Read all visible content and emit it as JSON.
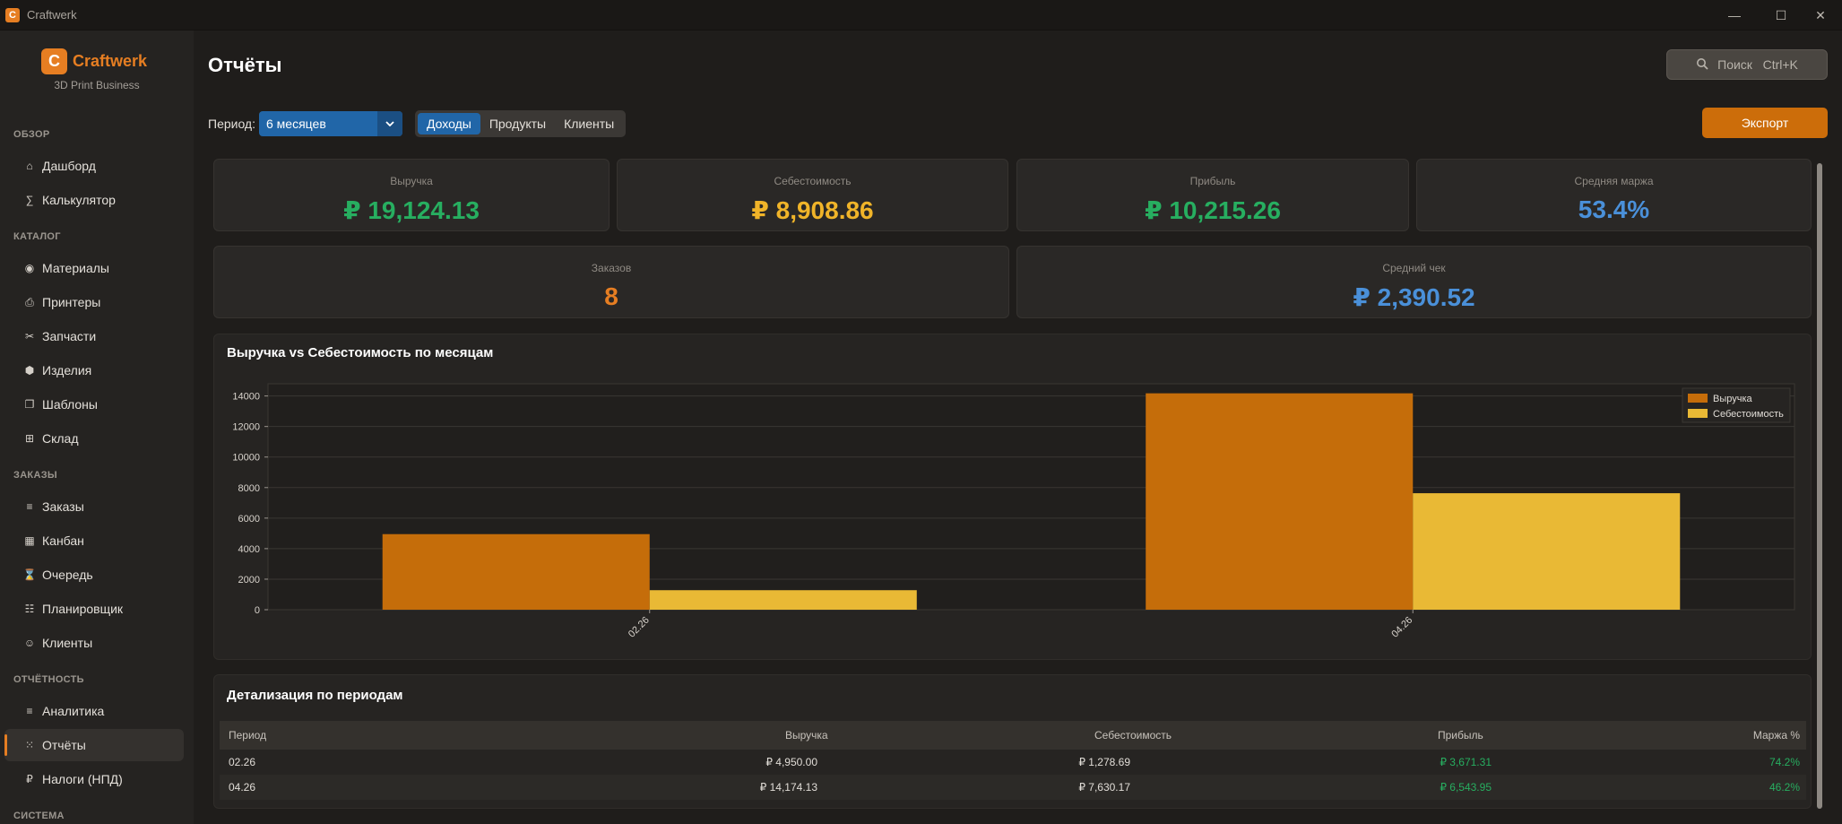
{
  "window": {
    "title": "Craftwerk",
    "logo_letter": "C",
    "controls": [
      "—",
      "☐",
      "✕"
    ]
  },
  "brand": {
    "name": "Craftwerk",
    "subtitle": "3D Print Business",
    "icon": "C"
  },
  "sidebar": {
    "sections": [
      {
        "label": "ОБЗОР",
        "items": [
          {
            "icon": "home-icon",
            "glyph": "⌂",
            "label": "Дашборд"
          },
          {
            "icon": "sigma-icon",
            "glyph": "∑",
            "label": "Калькулятор"
          }
        ]
      },
      {
        "label": "КАТАЛОГ",
        "items": [
          {
            "icon": "spool-icon",
            "glyph": "◉",
            "label": "Материалы"
          },
          {
            "icon": "printer-icon",
            "glyph": "⎙",
            "label": "Принтеры"
          },
          {
            "icon": "tools-icon",
            "glyph": "✂",
            "label": "Запчасти"
          },
          {
            "icon": "hexagon-icon",
            "glyph": "⬢",
            "label": "Изделия"
          },
          {
            "icon": "template-icon",
            "glyph": "❐",
            "label": "Шаблоны"
          },
          {
            "icon": "grid-icon",
            "glyph": "⊞",
            "label": "Склад"
          }
        ]
      },
      {
        "label": "ЗАКАЗЫ",
        "items": [
          {
            "icon": "list-icon",
            "glyph": "≡",
            "label": "Заказы"
          },
          {
            "icon": "kanban-icon",
            "glyph": "▦",
            "label": "Канбан"
          },
          {
            "icon": "hourglass-icon",
            "glyph": "⌛",
            "label": "Очередь"
          },
          {
            "icon": "planner-icon",
            "glyph": "☷",
            "label": "Планировщик"
          },
          {
            "icon": "smile-icon",
            "glyph": "☺",
            "label": "Клиенты"
          }
        ]
      },
      {
        "label": "ОТЧЁТНОСТЬ",
        "items": [
          {
            "icon": "analytics-icon",
            "glyph": "≡",
            "label": "Аналитика"
          },
          {
            "icon": "reports-icon",
            "glyph": "⁙",
            "label": "Отчёты",
            "active": true
          },
          {
            "icon": "ruble-icon",
            "glyph": "₽",
            "label": "Налоги (НПД)"
          }
        ]
      },
      {
        "label": "СИСТЕМА",
        "items": []
      }
    ]
  },
  "header": {
    "title": "Отчёты",
    "search_label": "Поиск   Ctrl+K",
    "search_icon": "search-icon"
  },
  "filters": {
    "period_label": "Период:",
    "period_value": "6 месяцев",
    "tabs": [
      {
        "label": "Доходы",
        "active": true
      },
      {
        "label": "Продукты",
        "active": false
      },
      {
        "label": "Клиенты",
        "active": false
      }
    ],
    "export_label": "Экспорт"
  },
  "kpis": {
    "revenue": {
      "label": "Выручка",
      "value": "₽ 19,124.13",
      "color": "#27ae60"
    },
    "cost": {
      "label": "Себестоимость",
      "value": "₽ 8,908.86",
      "color": "#f0b429"
    },
    "profit": {
      "label": "Прибыль",
      "value": "₽ 10,215.26",
      "color": "#27ae60"
    },
    "margin": {
      "label": "Средняя маржа",
      "value": "53.4%",
      "color": "#4a90d9"
    },
    "orders": {
      "label": "Заказов",
      "value": "8",
      "color": "#e67e22"
    },
    "avg_check": {
      "label": "Средний чек",
      "value": "₽ 2,390.52",
      "color": "#4a90d9"
    }
  },
  "chart_title": "Выручка vs Себестоимость по месяцам",
  "chart_data": {
    "type": "bar",
    "categories": [
      "02.26",
      "04.26"
    ],
    "series": [
      {
        "name": "Выручка",
        "values": [
          4950.0,
          14174.13
        ],
        "color": "#c56d0a"
      },
      {
        "name": "Себестоимость",
        "values": [
          1278.69,
          7630.17
        ],
        "color": "#e9b935"
      }
    ],
    "yticks": [
      0,
      2000,
      4000,
      6000,
      8000,
      10000,
      12000,
      14000
    ],
    "ylim": [
      0,
      14800
    ],
    "grid": true,
    "legend": "top-right"
  },
  "table": {
    "title": "Детализация по периодам",
    "columns": [
      "Период",
      "Выручка",
      "Себестоимость",
      "Прибыль",
      "Маржа %"
    ],
    "rows": [
      [
        "02.26",
        "₽ 4,950.00",
        "₽ 1,278.69",
        "₽ 3,671.31",
        "74.2%"
      ],
      [
        "04.26",
        "₽ 14,174.13",
        "₽ 7,630.17",
        "₽ 6,543.95",
        "46.2%"
      ]
    ]
  }
}
